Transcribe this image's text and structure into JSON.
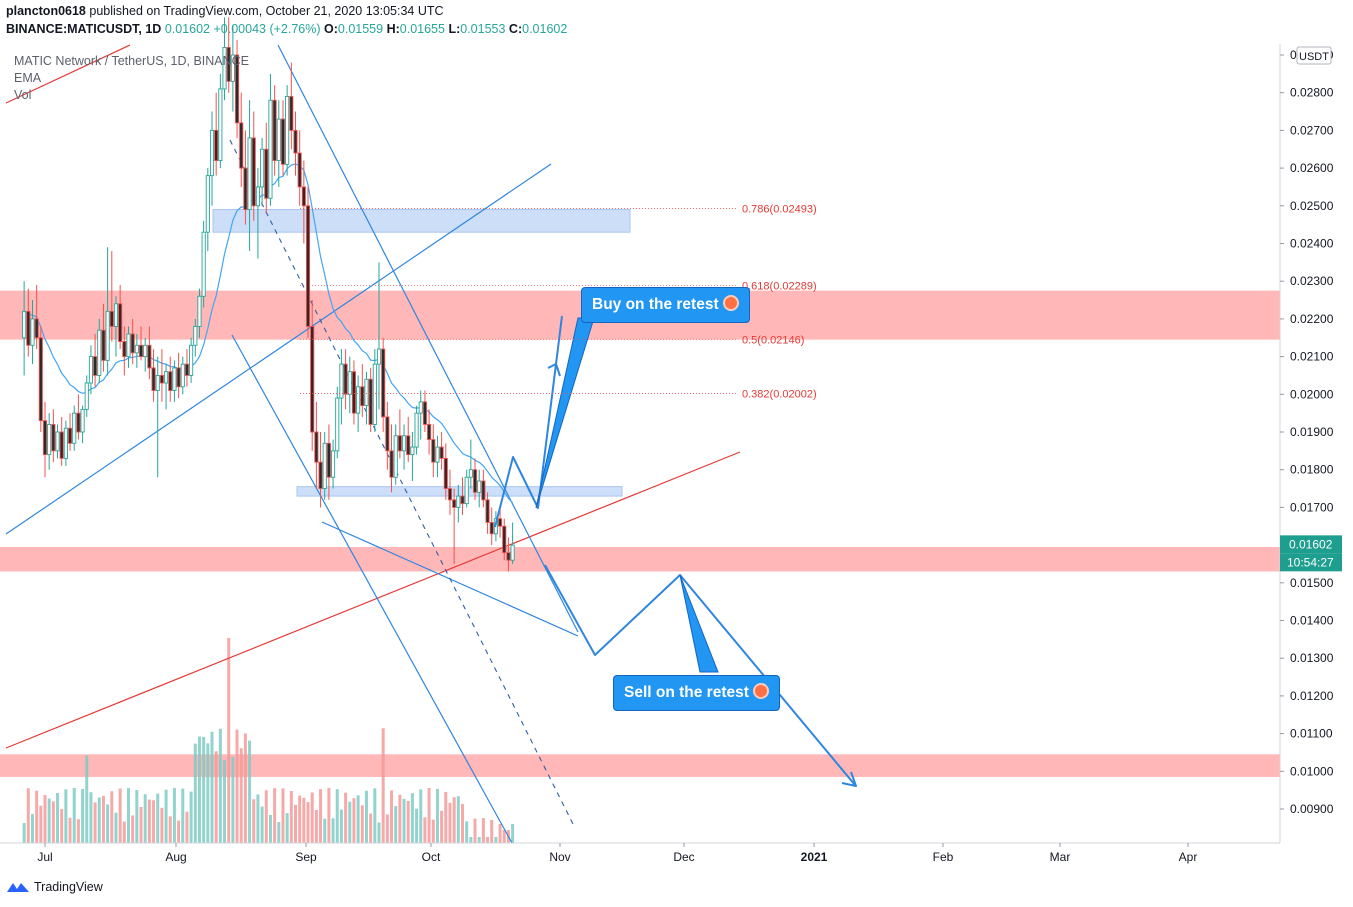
{
  "header": {
    "publisher": "plancton0618",
    "published_text": "published on TradingView.com, October 21, 2020 13:05:34 UTC",
    "symbol_line": "BINANCE:MATICUSDT, 1D",
    "last": "0.01602",
    "change": "+0.00043 (+2.76%)",
    "open_label": "O:",
    "open": "0.01559",
    "high_label": "H:",
    "high": "0.01655",
    "low_label": "L:",
    "low": "0.01553",
    "close_label": "C:",
    "close": "0.01602"
  },
  "legend": {
    "series_title": "MATIC Network / TetherUS, 1D, BINANCE",
    "ema": "EMA",
    "vol": "Vol"
  },
  "axis": {
    "currency": "USDT",
    "price_badge": "0.01602",
    "countdown_badge": "10:54:27"
  },
  "callouts": {
    "buy": "Buy on the retest",
    "sell": "Sell on the retest"
  },
  "brand": "TradingView",
  "colors": {
    "up": "#26a69a",
    "down": "#ef5350",
    "zone_red": "#ffb3b3",
    "zone_blue": "#c8daf7",
    "trend_blue": "#2f86e0",
    "trend_red": "#e53935",
    "badge": "#1e9e8e"
  },
  "chart_data": {
    "type": "candlestick",
    "symbol": "MATICUSDT",
    "timeframe": "1D",
    "y_axis_ticks": [
      "0.02900",
      "0.02800",
      "0.02700",
      "0.02600",
      "0.02500",
      "0.02400",
      "0.02300",
      "0.02200",
      "0.02100",
      "0.02000",
      "0.01900",
      "0.01800",
      "0.01700",
      "0.01500",
      "0.01400",
      "0.01300",
      "0.01200",
      "0.01100",
      "0.01000",
      "0.00900"
    ],
    "x_axis_ticks": [
      "Jul",
      "Aug",
      "Sep",
      "Oct",
      "Nov",
      "Dec",
      "2021",
      "Feb",
      "Mar",
      "Apr"
    ],
    "ylim": [
      0.0086,
      0.0296
    ],
    "fib_levels": [
      {
        "label": "0.786(0.02493)",
        "value": 0.02493
      },
      {
        "label": "0.618(0.02289)",
        "value": 0.02289
      },
      {
        "label": "0.5(0.02146)",
        "value": 0.02146
      },
      {
        "label": "0.382(0.02002)",
        "value": 0.02002
      }
    ],
    "zones": [
      {
        "kind": "resistance",
        "low": 0.02145,
        "high": 0.02275
      },
      {
        "kind": "support",
        "low": 0.0153,
        "high": 0.01595
      },
      {
        "kind": "target",
        "low": 0.00985,
        "high": 0.01045
      },
      {
        "kind": "supply_blue",
        "low": 0.0243,
        "high": 0.0249
      },
      {
        "kind": "demand_blue",
        "low": 0.0173,
        "high": 0.01755
      }
    ],
    "candles": [
      {
        "d": "2020-06-26",
        "o": 0.0215,
        "h": 0.023,
        "l": 0.0205,
        "c": 0.0222
      },
      {
        "d": "2020-06-27",
        "o": 0.0222,
        "h": 0.0228,
        "l": 0.021,
        "c": 0.0213
      },
      {
        "d": "2020-06-28",
        "o": 0.0213,
        "h": 0.0225,
        "l": 0.0208,
        "c": 0.022
      },
      {
        "d": "2020-06-29",
        "o": 0.022,
        "h": 0.0229,
        "l": 0.0212,
        "c": 0.0215
      },
      {
        "d": "2020-06-30",
        "o": 0.0215,
        "h": 0.0218,
        "l": 0.019,
        "c": 0.0193
      },
      {
        "d": "2020-07-01",
        "o": 0.0193,
        "h": 0.0198,
        "l": 0.0178,
        "c": 0.0184
      },
      {
        "d": "2020-07-02",
        "o": 0.0184,
        "h": 0.0195,
        "l": 0.018,
        "c": 0.0192
      },
      {
        "d": "2020-07-03",
        "o": 0.0192,
        "h": 0.0196,
        "l": 0.0182,
        "c": 0.0185
      },
      {
        "d": "2020-07-04",
        "o": 0.0185,
        "h": 0.0192,
        "l": 0.0183,
        "c": 0.019
      },
      {
        "d": "2020-07-05",
        "o": 0.019,
        "h": 0.0194,
        "l": 0.0181,
        "c": 0.0183
      },
      {
        "d": "2020-07-06",
        "o": 0.0183,
        "h": 0.0193,
        "l": 0.0181,
        "c": 0.0191
      },
      {
        "d": "2020-07-07",
        "o": 0.0191,
        "h": 0.0195,
        "l": 0.0185,
        "c": 0.0187
      },
      {
        "d": "2020-07-08",
        "o": 0.0187,
        "h": 0.0197,
        "l": 0.0185,
        "c": 0.0195
      },
      {
        "d": "2020-07-09",
        "o": 0.0195,
        "h": 0.02,
        "l": 0.0188,
        "c": 0.019
      },
      {
        "d": "2020-07-10",
        "o": 0.019,
        "h": 0.0197,
        "l": 0.0187,
        "c": 0.0196
      },
      {
        "d": "2020-07-11",
        "o": 0.0196,
        "h": 0.0205,
        "l": 0.0194,
        "c": 0.0203
      },
      {
        "d": "2020-07-12",
        "o": 0.0203,
        "h": 0.0213,
        "l": 0.02,
        "c": 0.021
      },
      {
        "d": "2020-07-13",
        "o": 0.021,
        "h": 0.0216,
        "l": 0.0202,
        "c": 0.0205
      },
      {
        "d": "2020-07-14",
        "o": 0.0205,
        "h": 0.022,
        "l": 0.0203,
        "c": 0.0217
      },
      {
        "d": "2020-07-15",
        "o": 0.0217,
        "h": 0.0224,
        "l": 0.0206,
        "c": 0.0209
      },
      {
        "d": "2020-07-16",
        "o": 0.0209,
        "h": 0.0239,
        "l": 0.0205,
        "c": 0.0222
      },
      {
        "d": "2020-07-17",
        "o": 0.0222,
        "h": 0.0238,
        "l": 0.0214,
        "c": 0.0218
      },
      {
        "d": "2020-07-18",
        "o": 0.0218,
        "h": 0.0226,
        "l": 0.021,
        "c": 0.0224
      },
      {
        "d": "2020-07-19",
        "o": 0.0224,
        "h": 0.0229,
        "l": 0.0212,
        "c": 0.0214
      },
      {
        "d": "2020-07-20",
        "o": 0.0214,
        "h": 0.0218,
        "l": 0.0205,
        "c": 0.021
      },
      {
        "d": "2020-07-21",
        "o": 0.021,
        "h": 0.0218,
        "l": 0.0207,
        "c": 0.0216
      },
      {
        "d": "2020-07-22",
        "o": 0.0216,
        "h": 0.022,
        "l": 0.0208,
        "c": 0.0211
      },
      {
        "d": "2020-07-23",
        "o": 0.0211,
        "h": 0.0216,
        "l": 0.0207,
        "c": 0.0213
      },
      {
        "d": "2020-07-24",
        "o": 0.0213,
        "h": 0.0218,
        "l": 0.0209,
        "c": 0.021
      },
      {
        "d": "2020-07-25",
        "o": 0.021,
        "h": 0.0215,
        "l": 0.0206,
        "c": 0.0213
      },
      {
        "d": "2020-07-26",
        "o": 0.0213,
        "h": 0.0218,
        "l": 0.0204,
        "c": 0.0207
      },
      {
        "d": "2020-07-27",
        "o": 0.0207,
        "h": 0.0212,
        "l": 0.0198,
        "c": 0.0201
      },
      {
        "d": "2020-07-28",
        "o": 0.0201,
        "h": 0.021,
        "l": 0.0178,
        "c": 0.0205
      },
      {
        "d": "2020-07-29",
        "o": 0.0205,
        "h": 0.0212,
        "l": 0.0198,
        "c": 0.0203
      },
      {
        "d": "2020-07-30",
        "o": 0.0203,
        "h": 0.0208,
        "l": 0.0196,
        "c": 0.0206
      },
      {
        "d": "2020-07-31",
        "o": 0.0206,
        "h": 0.021,
        "l": 0.0198,
        "c": 0.0201
      },
      {
        "d": "2020-08-01",
        "o": 0.0201,
        "h": 0.0209,
        "l": 0.0198,
        "c": 0.0207
      },
      {
        "d": "2020-08-02",
        "o": 0.0207,
        "h": 0.0211,
        "l": 0.0199,
        "c": 0.0202
      },
      {
        "d": "2020-08-03",
        "o": 0.0202,
        "h": 0.021,
        "l": 0.02,
        "c": 0.0208
      },
      {
        "d": "2020-08-04",
        "o": 0.0208,
        "h": 0.0212,
        "l": 0.0202,
        "c": 0.0205
      },
      {
        "d": "2020-08-05",
        "o": 0.0205,
        "h": 0.0215,
        "l": 0.0203,
        "c": 0.0213
      },
      {
        "d": "2020-08-06",
        "o": 0.0213,
        "h": 0.022,
        "l": 0.021,
        "c": 0.0218
      },
      {
        "d": "2020-08-07",
        "o": 0.0218,
        "h": 0.0228,
        "l": 0.0215,
        "c": 0.0226
      },
      {
        "d": "2020-08-08",
        "o": 0.0226,
        "h": 0.0246,
        "l": 0.0223,
        "c": 0.0243
      },
      {
        "d": "2020-08-09",
        "o": 0.0243,
        "h": 0.026,
        "l": 0.0238,
        "c": 0.0258
      },
      {
        "d": "2020-08-10",
        "o": 0.0258,
        "h": 0.0275,
        "l": 0.025,
        "c": 0.027
      },
      {
        "d": "2020-08-11",
        "o": 0.027,
        "h": 0.028,
        "l": 0.0258,
        "c": 0.0262
      },
      {
        "d": "2020-08-12",
        "o": 0.0262,
        "h": 0.0285,
        "l": 0.026,
        "c": 0.0281
      },
      {
        "d": "2020-08-13",
        "o": 0.0281,
        "h": 0.03,
        "l": 0.0278,
        "c": 0.0292
      },
      {
        "d": "2020-08-14",
        "o": 0.0292,
        "h": 0.03,
        "l": 0.028,
        "c": 0.0283
      },
      {
        "d": "2020-08-15",
        "o": 0.0283,
        "h": 0.0298,
        "l": 0.0275,
        "c": 0.029
      },
      {
        "d": "2020-08-16",
        "o": 0.029,
        "h": 0.0294,
        "l": 0.0268,
        "c": 0.0272
      },
      {
        "d": "2020-08-17",
        "o": 0.0272,
        "h": 0.028,
        "l": 0.0255,
        "c": 0.026
      },
      {
        "d": "2020-08-18",
        "o": 0.026,
        "h": 0.027,
        "l": 0.0245,
        "c": 0.0249
      },
      {
        "d": "2020-08-19",
        "o": 0.0249,
        "h": 0.0278,
        "l": 0.0238,
        "c": 0.0268
      },
      {
        "d": "2020-08-20",
        "o": 0.0268,
        "h": 0.0275,
        "l": 0.0246,
        "c": 0.025
      },
      {
        "d": "2020-08-21",
        "o": 0.025,
        "h": 0.026,
        "l": 0.0236,
        "c": 0.0255
      },
      {
        "d": "2020-08-22",
        "o": 0.0255,
        "h": 0.0268,
        "l": 0.025,
        "c": 0.0265
      },
      {
        "d": "2020-08-23",
        "o": 0.0265,
        "h": 0.0272,
        "l": 0.0248,
        "c": 0.0252
      },
      {
        "d": "2020-08-24",
        "o": 0.0252,
        "h": 0.0285,
        "l": 0.025,
        "c": 0.0278
      },
      {
        "d": "2020-08-25",
        "o": 0.0278,
        "h": 0.0282,
        "l": 0.0258,
        "c": 0.0262
      },
      {
        "d": "2020-08-26",
        "o": 0.0262,
        "h": 0.0278,
        "l": 0.0255,
        "c": 0.0273
      },
      {
        "d": "2020-08-27",
        "o": 0.0273,
        "h": 0.0278,
        "l": 0.0258,
        "c": 0.0261
      },
      {
        "d": "2020-08-28",
        "o": 0.0261,
        "h": 0.0282,
        "l": 0.0258,
        "c": 0.0279
      },
      {
        "d": "2020-08-29",
        "o": 0.0279,
        "h": 0.0288,
        "l": 0.0265,
        "c": 0.027
      },
      {
        "d": "2020-08-30",
        "o": 0.027,
        "h": 0.0275,
        "l": 0.0258,
        "c": 0.0264
      },
      {
        "d": "2020-08-31",
        "o": 0.0264,
        "h": 0.027,
        "l": 0.025,
        "c": 0.0255
      },
      {
        "d": "2020-09-01",
        "o": 0.0255,
        "h": 0.0262,
        "l": 0.024,
        "c": 0.025
      },
      {
        "d": "2020-09-02",
        "o": 0.025,
        "h": 0.0255,
        "l": 0.0215,
        "c": 0.0218
      },
      {
        "d": "2020-09-03",
        "o": 0.0218,
        "h": 0.0225,
        "l": 0.0185,
        "c": 0.019
      },
      {
        "d": "2020-09-04",
        "o": 0.019,
        "h": 0.0198,
        "l": 0.0175,
        "c": 0.0182
      },
      {
        "d": "2020-09-05",
        "o": 0.0182,
        "h": 0.019,
        "l": 0.017,
        "c": 0.0175
      },
      {
        "d": "2020-09-06",
        "o": 0.0175,
        "h": 0.019,
        "l": 0.0172,
        "c": 0.0187
      },
      {
        "d": "2020-09-07",
        "o": 0.0187,
        "h": 0.0192,
        "l": 0.0172,
        "c": 0.0178
      },
      {
        "d": "2020-09-08",
        "o": 0.0178,
        "h": 0.0188,
        "l": 0.0175,
        "c": 0.0185
      },
      {
        "d": "2020-09-09",
        "o": 0.0185,
        "h": 0.0202,
        "l": 0.0183,
        "c": 0.0199
      },
      {
        "d": "2020-09-10",
        "o": 0.0199,
        "h": 0.0212,
        "l": 0.0192,
        "c": 0.0208
      },
      {
        "d": "2020-09-11",
        "o": 0.0208,
        "h": 0.0212,
        "l": 0.0196,
        "c": 0.02
      },
      {
        "d": "2020-09-12",
        "o": 0.02,
        "h": 0.021,
        "l": 0.0195,
        "c": 0.0206
      },
      {
        "d": "2020-09-13",
        "o": 0.0206,
        "h": 0.0209,
        "l": 0.0192,
        "c": 0.0195
      },
      {
        "d": "2020-09-14",
        "o": 0.0195,
        "h": 0.0205,
        "l": 0.019,
        "c": 0.0202
      },
      {
        "d": "2020-09-15",
        "o": 0.0202,
        "h": 0.0208,
        "l": 0.0194,
        "c": 0.0197
      },
      {
        "d": "2020-09-16",
        "o": 0.0197,
        "h": 0.0206,
        "l": 0.0192,
        "c": 0.0204
      },
      {
        "d": "2020-09-17",
        "o": 0.0204,
        "h": 0.0207,
        "l": 0.019,
        "c": 0.0192
      },
      {
        "d": "2020-09-18",
        "o": 0.0192,
        "h": 0.0212,
        "l": 0.019,
        "c": 0.0208
      },
      {
        "d": "2020-09-19",
        "o": 0.0208,
        "h": 0.0235,
        "l": 0.0196,
        "c": 0.0212
      },
      {
        "d": "2020-09-20",
        "o": 0.0212,
        "h": 0.0215,
        "l": 0.019,
        "c": 0.0194
      },
      {
        "d": "2020-09-21",
        "o": 0.0194,
        "h": 0.0198,
        "l": 0.018,
        "c": 0.0185
      },
      {
        "d": "2020-09-22",
        "o": 0.0185,
        "h": 0.0192,
        "l": 0.0174,
        "c": 0.0178
      },
      {
        "d": "2020-09-23",
        "o": 0.0178,
        "h": 0.0192,
        "l": 0.0176,
        "c": 0.0189
      },
      {
        "d": "2020-09-24",
        "o": 0.0189,
        "h": 0.0196,
        "l": 0.0183,
        "c": 0.0185
      },
      {
        "d": "2020-09-25",
        "o": 0.0185,
        "h": 0.0192,
        "l": 0.018,
        "c": 0.0189
      },
      {
        "d": "2020-09-26",
        "o": 0.0189,
        "h": 0.0194,
        "l": 0.0182,
        "c": 0.0184
      },
      {
        "d": "2020-09-27",
        "o": 0.0184,
        "h": 0.019,
        "l": 0.0177,
        "c": 0.0186
      },
      {
        "d": "2020-09-28",
        "o": 0.0186,
        "h": 0.0197,
        "l": 0.0184,
        "c": 0.0195
      },
      {
        "d": "2020-09-29",
        "o": 0.0195,
        "h": 0.0201,
        "l": 0.0188,
        "c": 0.0198
      },
      {
        "d": "2020-09-30",
        "o": 0.0198,
        "h": 0.0201,
        "l": 0.019,
        "c": 0.0192
      },
      {
        "d": "2020-10-01",
        "o": 0.0192,
        "h": 0.0196,
        "l": 0.0184,
        "c": 0.0188
      },
      {
        "d": "2020-10-02",
        "o": 0.0188,
        "h": 0.0192,
        "l": 0.0178,
        "c": 0.0182
      },
      {
        "d": "2020-10-03",
        "o": 0.0182,
        "h": 0.0189,
        "l": 0.0178,
        "c": 0.0186
      },
      {
        "d": "2020-10-04",
        "o": 0.0186,
        "h": 0.019,
        "l": 0.018,
        "c": 0.0183
      },
      {
        "d": "2020-10-05",
        "o": 0.0183,
        "h": 0.0187,
        "l": 0.0172,
        "c": 0.0175
      },
      {
        "d": "2020-10-06",
        "o": 0.0175,
        "h": 0.018,
        "l": 0.0168,
        "c": 0.0172
      },
      {
        "d": "2020-10-07",
        "o": 0.0172,
        "h": 0.0175,
        "l": 0.0155,
        "c": 0.017
      },
      {
        "d": "2020-10-08",
        "o": 0.017,
        "h": 0.0176,
        "l": 0.0166,
        "c": 0.0173
      },
      {
        "d": "2020-10-09",
        "o": 0.0173,
        "h": 0.0178,
        "l": 0.0168,
        "c": 0.0171
      },
      {
        "d": "2020-10-10",
        "o": 0.0171,
        "h": 0.018,
        "l": 0.017,
        "c": 0.0178
      },
      {
        "d": "2020-10-11",
        "o": 0.0178,
        "h": 0.0188,
        "l": 0.0175,
        "c": 0.018
      },
      {
        "d": "2020-10-12",
        "o": 0.018,
        "h": 0.0183,
        "l": 0.0172,
        "c": 0.0174
      },
      {
        "d": "2020-10-13",
        "o": 0.0174,
        "h": 0.018,
        "l": 0.017,
        "c": 0.0177
      },
      {
        "d": "2020-10-14",
        "o": 0.0177,
        "h": 0.018,
        "l": 0.017,
        "c": 0.0172
      },
      {
        "d": "2020-10-15",
        "o": 0.0172,
        "h": 0.0174,
        "l": 0.0163,
        "c": 0.0166
      },
      {
        "d": "2020-10-16",
        "o": 0.0166,
        "h": 0.017,
        "l": 0.016,
        "c": 0.0163
      },
      {
        "d": "2020-10-17",
        "o": 0.0163,
        "h": 0.0169,
        "l": 0.0161,
        "c": 0.0167
      },
      {
        "d": "2020-10-18",
        "o": 0.0167,
        "h": 0.017,
        "l": 0.0162,
        "c": 0.0165
      },
      {
        "d": "2020-10-19",
        "o": 0.0165,
        "h": 0.0167,
        "l": 0.0156,
        "c": 0.0158
      },
      {
        "d": "2020-10-20",
        "o": 0.0158,
        "h": 0.0162,
        "l": 0.0153,
        "c": 0.0156
      },
      {
        "d": "2020-10-21",
        "o": 0.0156,
        "h": 0.0166,
        "l": 0.0155,
        "c": 0.016
      }
    ]
  }
}
